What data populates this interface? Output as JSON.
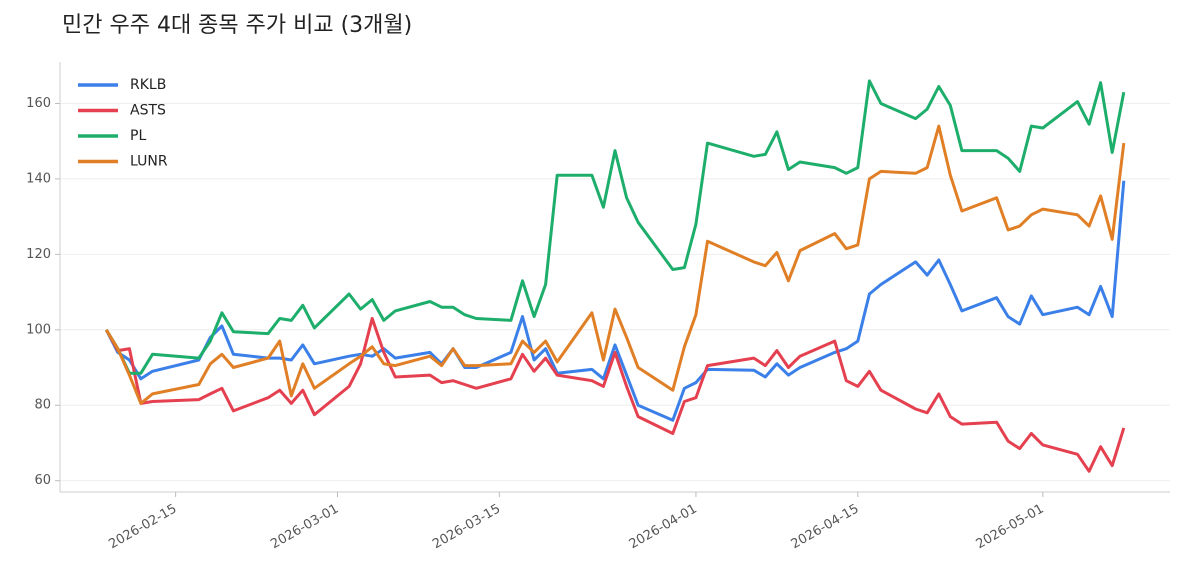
{
  "chart_data": {
    "type": "line",
    "title": "민간 우주 4대 종목 주가 비교 (3개월)",
    "x": [
      "2026-02-09",
      "2026-02-10",
      "2026-02-11",
      "2026-02-12",
      "2026-02-13",
      "2026-02-17",
      "2026-02-18",
      "2026-02-19",
      "2026-02-20",
      "2026-02-23",
      "2026-02-24",
      "2026-02-25",
      "2026-02-26",
      "2026-02-27",
      "2026-03-02",
      "2026-03-03",
      "2026-03-04",
      "2026-03-05",
      "2026-03-06",
      "2026-03-09",
      "2026-03-10",
      "2026-03-11",
      "2026-03-12",
      "2026-03-13",
      "2026-03-16",
      "2026-03-17",
      "2026-03-18",
      "2026-03-19",
      "2026-03-20",
      "2026-03-23",
      "2026-03-24",
      "2026-03-25",
      "2026-03-26",
      "2026-03-27",
      "2026-03-30",
      "2026-03-31",
      "2026-04-01",
      "2026-04-02",
      "2026-04-06",
      "2026-04-07",
      "2026-04-08",
      "2026-04-09",
      "2026-04-10",
      "2026-04-13",
      "2026-04-14",
      "2026-04-15",
      "2026-04-16",
      "2026-04-17",
      "2026-04-20",
      "2026-04-21",
      "2026-04-22",
      "2026-04-23",
      "2026-04-24",
      "2026-04-27",
      "2026-04-28",
      "2026-04-29",
      "2026-04-30",
      "2026-05-01",
      "2026-05-04",
      "2026-05-05",
      "2026-05-06",
      "2026-05-07",
      "2026-05-08"
    ],
    "series": [
      {
        "name": "RKLB",
        "color": "#3b7fe8",
        "values": [
          100,
          94,
          92,
          87,
          89,
          92,
          98,
          101,
          93.5,
          92.5,
          92.5,
          92,
          96,
          91,
          93,
          93.5,
          93,
          95,
          92.5,
          94,
          91,
          95,
          90,
          90,
          94,
          103.5,
          92,
          95,
          88.5,
          89.5,
          87,
          96,
          88,
          80,
          76,
          84.5,
          86,
          89.5,
          89.3,
          87.5,
          91,
          88,
          90,
          94,
          95,
          97,
          109.5,
          112,
          118,
          114.5,
          118.5,
          112,
          105,
          108.5,
          103.5,
          101.5,
          109,
          104,
          106,
          104,
          111.5,
          103.5,
          139.5
        ]
      },
      {
        "name": "ASTS",
        "color": "#e5404f",
        "values": [
          100,
          94.5,
          95,
          80.5,
          81,
          81.5,
          83,
          84.5,
          78.5,
          82,
          84,
          80.5,
          84,
          77.5,
          85,
          91,
          103,
          94,
          87.5,
          88,
          86,
          86.5,
          85.5,
          84.5,
          87,
          93.5,
          89,
          92.5,
          88,
          86.5,
          85,
          94,
          85,
          77,
          72.5,
          81,
          82,
          90.5,
          92.5,
          90.5,
          94.5,
          90,
          93,
          97,
          86.5,
          85,
          89,
          84,
          79,
          78,
          83,
          77,
          75,
          75.5,
          70.5,
          68.5,
          72.5,
          69.5,
          67,
          62.5,
          69,
          64,
          74
        ]
      },
      {
        "name": "PL",
        "color": "#1eae6c",
        "values": [
          100,
          95,
          88.5,
          88.5,
          93.5,
          92.5,
          97,
          104.5,
          99.5,
          99,
          103,
          102.5,
          106.5,
          100.5,
          109.5,
          105.5,
          108,
          102.5,
          105,
          107.5,
          106,
          106,
          104,
          103,
          102.5,
          113,
          103.5,
          112,
          141,
          141,
          132.5,
          147.5,
          135,
          128.5,
          116,
          116.5,
          128,
          149.5,
          146,
          146.5,
          152.5,
          142.5,
          144.5,
          143,
          141.5,
          143,
          166,
          160,
          156,
          158.5,
          164.5,
          159.5,
          147.5,
          147.5,
          145.5,
          142,
          154,
          153.5,
          160.5,
          154.5,
          165.5,
          147,
          163
        ]
      },
      {
        "name": "LUNR",
        "color": "#e07f25",
        "values": [
          100,
          95,
          88,
          80.5,
          83,
          85.5,
          91,
          93.5,
          90,
          92.5,
          97,
          82.5,
          91,
          84.5,
          91,
          93,
          95.5,
          91,
          90.5,
          93,
          90.5,
          95,
          90.5,
          90.5,
          91,
          97,
          94,
          97,
          91.5,
          104.5,
          92,
          105.5,
          98,
          90,
          84,
          95.5,
          104,
          123.5,
          118,
          117,
          120.5,
          113,
          121,
          125.5,
          121.5,
          122.5,
          140,
          142,
          141.5,
          143,
          154,
          141,
          131.5,
          135,
          126.5,
          127.5,
          130.5,
          132,
          130.5,
          127.5,
          135.5,
          124,
          149.5
        ]
      }
    ],
    "xlim": [
      "2026-02-05",
      "2026-05-12"
    ],
    "xticks": [
      "2026-02-15",
      "2026-03-01",
      "2026-03-15",
      "2026-04-01",
      "2026-04-15",
      "2026-05-01"
    ],
    "ylim": [
      57,
      171
    ],
    "yticks": [
      60,
      80,
      100,
      120,
      140,
      160
    ],
    "grid": true,
    "legend": "upper-left"
  }
}
